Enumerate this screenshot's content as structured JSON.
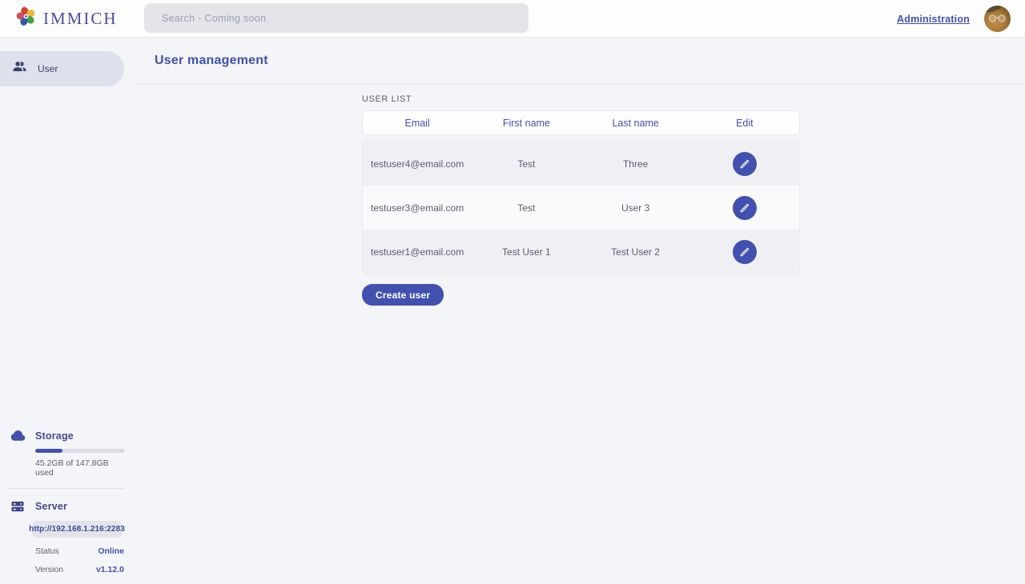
{
  "header": {
    "brand": "IMMICH",
    "search_placeholder": "Search - Coming soon",
    "admin_link": "Administration"
  },
  "sidebar": {
    "items": [
      {
        "label": "User",
        "icon": "users-icon",
        "active": true
      }
    ],
    "storage": {
      "title": "Storage",
      "icon": "cloud-icon",
      "usage_text": "45.2GB of 147.8GB used",
      "percent_used": 30.6
    },
    "server": {
      "title": "Server",
      "icon": "server-icon",
      "url": "http://192.168.1.216:2283",
      "rows": [
        {
          "label": "Status",
          "value": "Online"
        },
        {
          "label": "Version",
          "value": "v1.12.0"
        }
      ]
    }
  },
  "main": {
    "title": "User management",
    "section_label": "USER LIST",
    "table": {
      "columns": [
        "Email",
        "First name",
        "Last name",
        "Edit"
      ],
      "rows": [
        {
          "email": "testuser4@email.com",
          "first_name": "Test",
          "last_name": "Three"
        },
        {
          "email": "testuser3@email.com",
          "first_name": "Test",
          "last_name": "User 3"
        },
        {
          "email": "testuser1@email.com",
          "first_name": "Test User 1",
          "last_name": "Test User 2"
        }
      ]
    },
    "create_button": "Create user"
  },
  "icons": {
    "logo": "immich-flower-logo",
    "row_action": "pencil-icon",
    "avatar": "user-avatar-photo"
  },
  "colors": {
    "accent": "#4250af",
    "online_status": "#4250af",
    "page_background": "#f4f5f9"
  }
}
